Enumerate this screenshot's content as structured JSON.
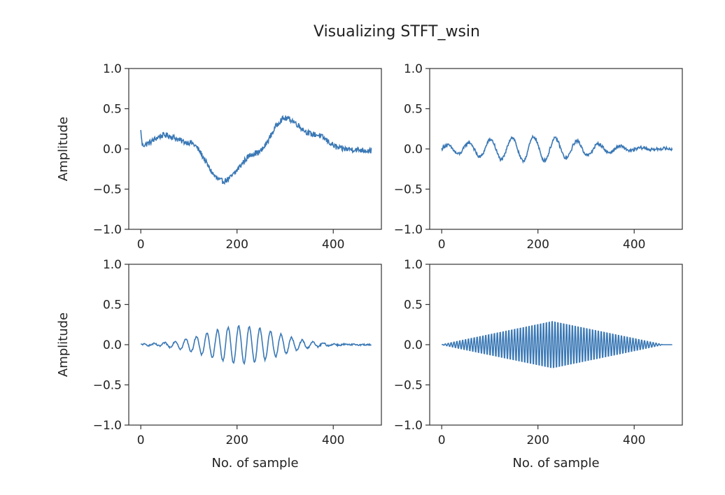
{
  "figure": {
    "title": "Visualizing STFT_wsin",
    "line_color": "#3a78b5"
  },
  "chart_data": [
    {
      "type": "line",
      "title": "",
      "xlabel": "",
      "ylabel": "Amplitude",
      "xlim": [
        -25,
        500
      ],
      "ylim": [
        -1.0,
        1.0
      ],
      "xticks": [
        0,
        200,
        400
      ],
      "xtick_labels": [
        "0",
        "200",
        "400"
      ],
      "yticks": [
        -1.0,
        -0.5,
        0.0,
        0.5,
        1.0
      ],
      "ytick_labels": [
        "−1.0",
        "−0.5",
        "0.0",
        "0.5",
        "1.0"
      ],
      "grid": false,
      "signal": {
        "n_samples": 480,
        "description_points": [
          [
            0,
            0.22
          ],
          [
            3,
            0.05
          ],
          [
            50,
            0.17
          ],
          [
            100,
            0.08
          ],
          [
            170,
            -0.4
          ],
          [
            240,
            -0.05
          ],
          [
            300,
            0.38
          ],
          [
            360,
            0.18
          ],
          [
            420,
            0.0
          ],
          [
            480,
            -0.02
          ]
        ],
        "noise_amplitude": 0.035
      }
    },
    {
      "type": "line",
      "title": "",
      "xlabel": "",
      "ylabel": "",
      "xlim": [
        -25,
        500
      ],
      "ylim": [
        -1.0,
        1.0
      ],
      "xticks": [
        0,
        200,
        400
      ],
      "xtick_labels": [
        "0",
        "200",
        "400"
      ],
      "yticks": [
        -1.0,
        -0.5,
        0.0,
        0.5,
        1.0
      ],
      "ytick_labels": [
        "−1.0",
        "−0.5",
        "0.0",
        "0.5",
        "1.0"
      ],
      "grid": false,
      "signal": {
        "n_samples": 480,
        "peak_amplitude": 0.15,
        "period_samples": 45,
        "envelope_center": 180,
        "envelope_width": 110,
        "noise_amplitude": 0.02
      }
    },
    {
      "type": "line",
      "title": "",
      "xlabel": "No. of sample",
      "ylabel": "Amplitude",
      "xlim": [
        -25,
        500
      ],
      "ylim": [
        -1.0,
        1.0
      ],
      "xticks": [
        0,
        200,
        400
      ],
      "xtick_labels": [
        "0",
        "200",
        "400"
      ],
      "yticks": [
        -1.0,
        -0.5,
        0.0,
        0.5,
        1.0
      ],
      "ytick_labels": [
        "−1.0",
        "−0.5",
        "0.0",
        "0.5",
        "1.0"
      ],
      "grid": false,
      "signal": {
        "n_samples": 480,
        "peak_amplitude": 0.23,
        "period_samples": 22,
        "envelope_center": 210,
        "envelope_width": 75,
        "noise_amplitude": 0.01
      }
    },
    {
      "type": "line",
      "title": "",
      "xlabel": "No. of sample",
      "ylabel": "",
      "xlim": [
        -25,
        500
      ],
      "ylim": [
        -1.0,
        1.0
      ],
      "xticks": [
        0,
        200,
        400
      ],
      "xtick_labels": [
        "0",
        "200",
        "400"
      ],
      "yticks": [
        -1.0,
        -0.5,
        0.0,
        0.5,
        1.0
      ],
      "ytick_labels": [
        "−1.0",
        "−0.5",
        "0.0",
        "0.5",
        "1.0"
      ],
      "grid": false,
      "signal": {
        "n_samples": 480,
        "peak_amplitude": 0.33,
        "period_samples": 6,
        "envelope_center": 230,
        "envelope_width": 230,
        "envelope_shape": "triangle",
        "noise_amplitude": 0.0
      }
    }
  ]
}
